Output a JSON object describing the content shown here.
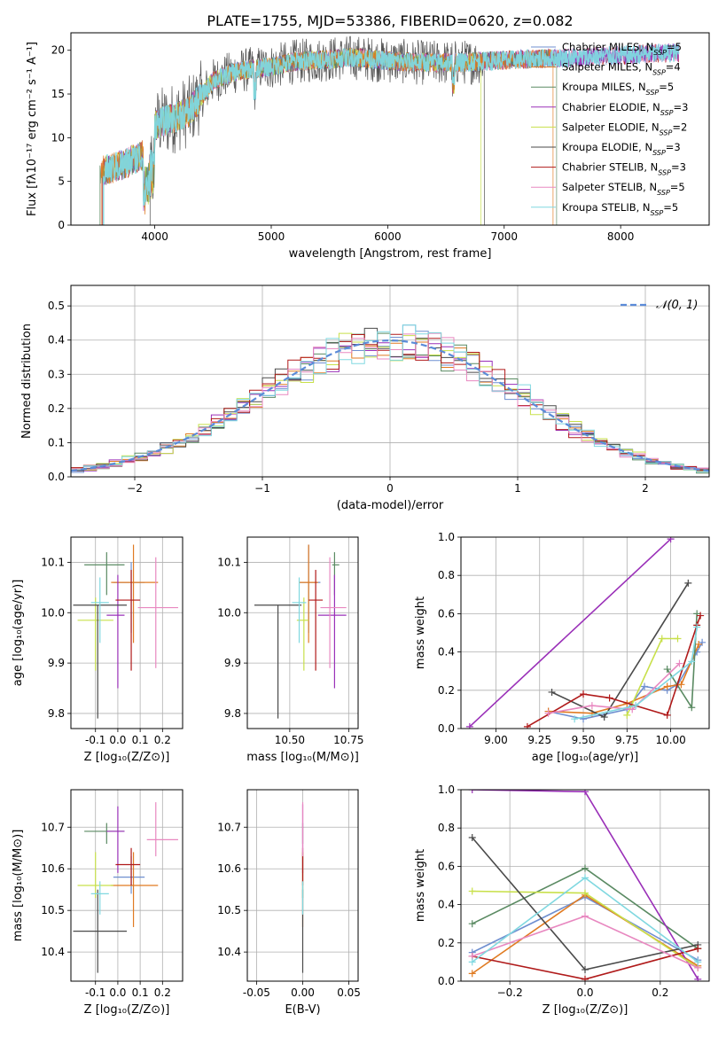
{
  "figure_title": "PLATE=1755, MJD=53386, FIBERID=0620, z=0.082",
  "model_colors": [
    "#6f8fd0",
    "#e07b22",
    "#5a8a62",
    "#9a30b8",
    "#c8e04a",
    "#4a4a4a",
    "#b01a1a",
    "#e888c0",
    "#80d8e0"
  ],
  "chart_data": [
    {
      "id": "spectrum",
      "type": "line",
      "xlabel": "wavelength [Angstrom, rest frame]",
      "ylabel": "Flux [fλ10⁻¹⁷ erg cm⁻² s⁻¹ A⁻¹]",
      "xlim": [
        3280,
        8760
      ],
      "ylim": [
        0,
        22
      ],
      "xticks": [
        4000,
        5000,
        6000,
        7000,
        8000
      ],
      "yticks": [
        0,
        5,
        10,
        15,
        20
      ],
      "legend_position": "top-right",
      "legend": [
        "Chabrier MILES, N_SSP=5",
        "Salpeter MILES, N_SSP=4",
        "Kroupa MILES, N_SSP=5",
        "Chabrier ELODIE, N_SSP=3",
        "Salpeter ELODIE, N_SSP=2",
        "Kroupa ELODIE, N_SSP=3",
        "Chabrier STELIB, N_SSP=3",
        "Salpeter STELIB, N_SSP=5",
        "Kroupa STELIB, N_SSP=5"
      ],
      "continuum": {
        "x": [
          3550,
          3700,
          3900,
          4000,
          4150,
          4300,
          4500,
          4700,
          5000,
          5200,
          5400,
          5700,
          6000,
          6300,
          6600,
          6900,
          7200,
          7500,
          7800,
          8100,
          8400
        ],
        "y": [
          6.2,
          6.8,
          8.0,
          11.5,
          12.2,
          13.0,
          16.5,
          17.6,
          18.1,
          18.7,
          18.9,
          19.2,
          18.8,
          18.6,
          18.6,
          18.8,
          19.0,
          19.1,
          19.3,
          19.5,
          19.7
        ]
      }
    },
    {
      "id": "residuals",
      "type": "histogram",
      "xlabel": "(data-model)/error",
      "ylabel": "Normed distribution",
      "xlim": [
        -2.5,
        2.5
      ],
      "ylim": [
        0,
        0.56
      ],
      "xticks": [
        -2,
        -1,
        0,
        1,
        2
      ],
      "yticks": [
        0.0,
        0.1,
        0.2,
        0.3,
        0.4,
        0.5
      ],
      "grid": true,
      "legend_position": "top-right",
      "legend": [
        "𝒩(0, 1)"
      ],
      "bin_width": 0.1
    },
    {
      "id": "age-vs-Z",
      "type": "scatter",
      "xlabel": "Z [log₁₀(Z/Z⊙)]",
      "ylabel": "age  [log₁₀(age/yr)]",
      "xlim": [
        -0.21,
        0.29
      ],
      "ylim": [
        9.77,
        10.15
      ],
      "xticks": [
        -0.1,
        0.0,
        0.1,
        0.2
      ],
      "xticklabels": [
        "-0.1",
        "0.0",
        "0.1",
        "0.2"
      ],
      "yticks": [
        9.8,
        9.9,
        10.0,
        10.1
      ],
      "grid": true,
      "points": [
        {
          "x": 0.06,
          "y": 10.06,
          "xerr": [
            0.08,
            0.06
          ],
          "yerr": [
            0.1,
            0.04
          ]
        },
        {
          "x": 0.07,
          "y": 10.06,
          "xerr": [
            0.1,
            0.11
          ],
          "yerr": [
            0.12,
            0.075
          ]
        },
        {
          "x": -0.05,
          "y": 10.095,
          "xerr": [
            0.1,
            0.08
          ],
          "yerr": [
            0.06,
            0.025
          ]
        },
        {
          "x": 0.0,
          "y": 9.995,
          "xerr": [
            0.05,
            0.03
          ],
          "yerr": [
            0.145,
            0.08
          ]
        },
        {
          "x": -0.1,
          "y": 9.985,
          "xerr": [
            0.08,
            0.08
          ],
          "yerr": [
            0.1,
            0.045
          ]
        },
        {
          "x": -0.09,
          "y": 10.015,
          "xerr": [
            0.11,
            0.13
          ],
          "yerr": [
            0.225,
            0.0
          ]
        },
        {
          "x": 0.06,
          "y": 10.025,
          "xerr": [
            0.07,
            0.04
          ],
          "yerr": [
            0.14,
            0.06
          ]
        },
        {
          "x": 0.17,
          "y": 10.01,
          "xerr": [
            0.08,
            0.1
          ],
          "yerr": [
            0.12,
            0.1
          ]
        },
        {
          "x": -0.08,
          "y": 10.02,
          "xerr": [
            0.04,
            0.04
          ],
          "yerr": [
            0.08,
            0.05
          ]
        }
      ]
    },
    {
      "id": "age-vs-mass",
      "type": "scatter",
      "xlabel": "mass [log₁₀(M/M⊙)]",
      "ylabel": "",
      "xlim": [
        10.32,
        10.79
      ],
      "ylim": [
        9.77,
        10.15
      ],
      "xticks": [
        10.5,
        10.75
      ],
      "xticklabels": [
        "10.50",
        "10.75"
      ],
      "yticks": [
        9.8,
        9.9,
        10.0,
        10.1
      ],
      "grid": true,
      "points": [
        {
          "x": 10.58,
          "y": 10.06,
          "xerr": [
            0.04,
            0.05
          ],
          "yerr": [
            0.1,
            0.075
          ]
        },
        {
          "x": 10.58,
          "y": 10.06,
          "xerr": [
            0.04,
            0.04
          ],
          "yerr": [
            0.12,
            0.075
          ]
        },
        {
          "x": 10.69,
          "y": 10.095,
          "xerr": [
            0.01,
            0.02
          ],
          "yerr": [
            0.06,
            0.025
          ]
        },
        {
          "x": 10.69,
          "y": 9.995,
          "xerr": [
            0.07,
            0.05
          ],
          "yerr": [
            0.145,
            0.08
          ]
        },
        {
          "x": 10.56,
          "y": 9.985,
          "xerr": [
            0.03,
            0.02
          ],
          "yerr": [
            0.1,
            0.045
          ]
        },
        {
          "x": 10.45,
          "y": 10.015,
          "xerr": [
            0.1,
            0.1
          ],
          "yerr": [
            0.225,
            0.0
          ]
        },
        {
          "x": 10.61,
          "y": 10.025,
          "xerr": [
            0.03,
            0.03
          ],
          "yerr": [
            0.14,
            0.06
          ]
        },
        {
          "x": 10.67,
          "y": 10.01,
          "xerr": [
            0.04,
            0.07
          ],
          "yerr": [
            0.12,
            0.1
          ]
        },
        {
          "x": 10.54,
          "y": 10.02,
          "xerr": [
            0.03,
            0.03
          ],
          "yerr": [
            0.08,
            0.05
          ]
        }
      ]
    },
    {
      "id": "weight-vs-age",
      "type": "line",
      "xlabel": "age  [log₁₀(age/yr)]",
      "ylabel": "mass weight",
      "xlim": [
        8.8,
        10.22
      ],
      "ylim": [
        0,
        1.0
      ],
      "xticks": [
        9.0,
        9.25,
        9.5,
        9.75,
        10.0
      ],
      "xticklabels": [
        "9.00",
        "9.25",
        "9.50",
        "9.75",
        "10.00"
      ],
      "yticks": [
        0.0,
        0.2,
        0.4,
        0.6,
        0.8,
        1.0
      ],
      "grid": true,
      "series": [
        {
          "x": [
            9.3,
            9.5,
            9.75,
            9.85,
            9.98,
            10.04,
            10.15,
            10.18
          ],
          "y": [
            0.09,
            0.05,
            0.1,
            0.22,
            0.2,
            0.23,
            0.4,
            0.45
          ]
        },
        {
          "x": [
            9.3,
            9.55,
            9.75,
            9.98,
            10.06,
            10.16
          ],
          "y": [
            0.09,
            0.08,
            0.13,
            0.22,
            0.23,
            0.44
          ]
        },
        {
          "x": [
            9.98,
            10.12,
            10.15
          ],
          "y": [
            0.31,
            0.11,
            0.6
          ]
        },
        {
          "x": [
            8.85,
            10.0
          ],
          "y": [
            0.01,
            0.99
          ]
        },
        {
          "x": [
            9.75,
            9.95,
            10.04
          ],
          "y": [
            0.07,
            0.47,
            0.47
          ]
        },
        {
          "x": [
            9.32,
            9.62,
            10.1
          ],
          "y": [
            0.19,
            0.06,
            0.76
          ]
        },
        {
          "x": [
            9.18,
            9.5,
            9.65,
            9.98,
            10.15,
            10.17
          ],
          "y": [
            0.01,
            0.18,
            0.16,
            0.07,
            0.54,
            0.59
          ]
        },
        {
          "x": [
            9.3,
            9.55,
            9.78,
            10.05
          ],
          "y": [
            0.08,
            0.12,
            0.1,
            0.34
          ]
        },
        {
          "x": [
            9.45,
            9.8,
            10.12,
            10.15
          ],
          "y": [
            0.05,
            0.12,
            0.35,
            0.53
          ]
        }
      ]
    },
    {
      "id": "mass-vs-Z",
      "type": "scatter",
      "xlabel": "Z [log₁₀(Z/Z⊙)]",
      "ylabel": "mass [log₁₀(M/M⊙)]",
      "xlim": [
        -0.21,
        0.29
      ],
      "ylim": [
        10.33,
        10.79
      ],
      "xticks": [
        -0.1,
        0.0,
        0.1,
        0.2
      ],
      "xticklabels": [
        "-0.1",
        "0.0",
        "0.1",
        "0.2"
      ],
      "yticks": [
        10.4,
        10.5,
        10.6,
        10.7
      ],
      "grid": true,
      "points": [
        {
          "x": 0.06,
          "y": 10.58,
          "xerr": [
            0.08,
            0.06
          ],
          "yerr": [
            0.04,
            0.05
          ]
        },
        {
          "x": 0.07,
          "y": 10.56,
          "xerr": [
            0.1,
            0.11
          ],
          "yerr": [
            0.1,
            0.08
          ]
        },
        {
          "x": -0.05,
          "y": 10.69,
          "xerr": [
            0.1,
            0.08
          ],
          "yerr": [
            0.03,
            0.02
          ]
        },
        {
          "x": 0.0,
          "y": 10.69,
          "xerr": [
            0.05,
            0.03
          ],
          "yerr": [
            0.1,
            0.06
          ]
        },
        {
          "x": -0.1,
          "y": 10.56,
          "xerr": [
            0.08,
            0.08
          ],
          "yerr": [
            0.03,
            0.08
          ]
        },
        {
          "x": -0.09,
          "y": 10.45,
          "xerr": [
            0.11,
            0.13
          ],
          "yerr": [
            0.1,
            0.1
          ]
        },
        {
          "x": 0.06,
          "y": 10.61,
          "xerr": [
            0.07,
            0.04
          ],
          "yerr": [
            0.05,
            0.04
          ]
        },
        {
          "x": 0.17,
          "y": 10.67,
          "xerr": [
            0.04,
            0.1
          ],
          "yerr": [
            0.04,
            0.09
          ]
        },
        {
          "x": -0.08,
          "y": 10.54,
          "xerr": [
            0.04,
            0.04
          ],
          "yerr": [
            0.05,
            0.03
          ]
        }
      ]
    },
    {
      "id": "mass-vs-EBV",
      "type": "scatter",
      "xlabel": "E(B-V)",
      "ylabel": "",
      "xlim": [
        -0.06,
        0.06
      ],
      "ylim": [
        10.33,
        10.79
      ],
      "xticks": [
        -0.05,
        0.0,
        0.05
      ],
      "xticklabels": [
        "-0.05",
        "0.00",
        "0.05"
      ],
      "yticks": [
        10.4,
        10.5,
        10.6,
        10.7
      ],
      "grid": true,
      "points": [
        {
          "x": 0.0,
          "y": 10.58,
          "xerr": [
            0,
            0
          ],
          "yerr": [
            0.05,
            0.05
          ]
        },
        {
          "x": 0.0,
          "y": 10.56,
          "xerr": [
            0,
            0
          ],
          "yerr": [
            0.1,
            0.08
          ]
        },
        {
          "x": 0.0,
          "y": 10.69,
          "xerr": [
            0,
            0
          ],
          "yerr": [
            0.03,
            0.02
          ]
        },
        {
          "x": 0.0,
          "y": 10.69,
          "xerr": [
            0,
            0
          ],
          "yerr": [
            0.1,
            0.065
          ]
        },
        {
          "x": 0.0,
          "y": 10.56,
          "xerr": [
            0,
            0
          ],
          "yerr": [
            0.03,
            0.08
          ]
        },
        {
          "x": 0.0,
          "y": 10.45,
          "xerr": [
            0,
            0
          ],
          "yerr": [
            0.1,
            0.1
          ]
        },
        {
          "x": 0.0,
          "y": 10.61,
          "xerr": [
            0,
            0
          ],
          "yerr": [
            0.05,
            0.04
          ]
        },
        {
          "x": 0.0,
          "y": 10.67,
          "xerr": [
            0,
            0
          ],
          "yerr": [
            0.04,
            0.09
          ]
        },
        {
          "x": 0.0,
          "y": 10.54,
          "xerr": [
            0,
            0
          ],
          "yerr": [
            0.05,
            0.03
          ]
        }
      ]
    },
    {
      "id": "weight-vs-Z",
      "type": "line",
      "xlabel": "Z [log₁₀(Z/Z⊙)]",
      "ylabel": "mass weight",
      "xlim": [
        -0.33,
        0.33
      ],
      "ylim": [
        0,
        1.0
      ],
      "xticks": [
        -0.2,
        0.0,
        0.2
      ],
      "xticklabels": [
        "−0.2",
        "0.0",
        "0.2"
      ],
      "yticks": [
        0.0,
        0.2,
        0.4,
        0.6,
        0.8,
        1.0
      ],
      "grid": true,
      "series": [
        {
          "x": [
            -0.3,
            0.0,
            0.3
          ],
          "y": [
            0.15,
            0.44,
            0.11
          ]
        },
        {
          "x": [
            -0.3,
            0.0,
            0.3
          ],
          "y": [
            0.04,
            0.45,
            0.08
          ]
        },
        {
          "x": [
            -0.3,
            0.0,
            0.3
          ],
          "y": [
            0.3,
            0.59,
            0.17
          ]
        },
        {
          "x": [
            -0.3,
            0.0,
            0.3
          ],
          "y": [
            1.0,
            0.99,
            0.01
          ]
        },
        {
          "x": [
            -0.3,
            0.0,
            0.3
          ],
          "y": [
            0.47,
            0.46,
            0.07
          ]
        },
        {
          "x": [
            -0.3,
            0.0,
            0.3
          ],
          "y": [
            0.75,
            0.06,
            0.19
          ]
        },
        {
          "x": [
            -0.3,
            0.0,
            0.3
          ],
          "y": [
            0.13,
            0.01,
            0.17
          ]
        },
        {
          "x": [
            -0.3,
            0.0,
            0.3
          ],
          "y": [
            0.13,
            0.34,
            0.07
          ]
        },
        {
          "x": [
            -0.3,
            0.0,
            0.3
          ],
          "y": [
            0.1,
            0.54,
            0.1
          ]
        }
      ]
    }
  ]
}
